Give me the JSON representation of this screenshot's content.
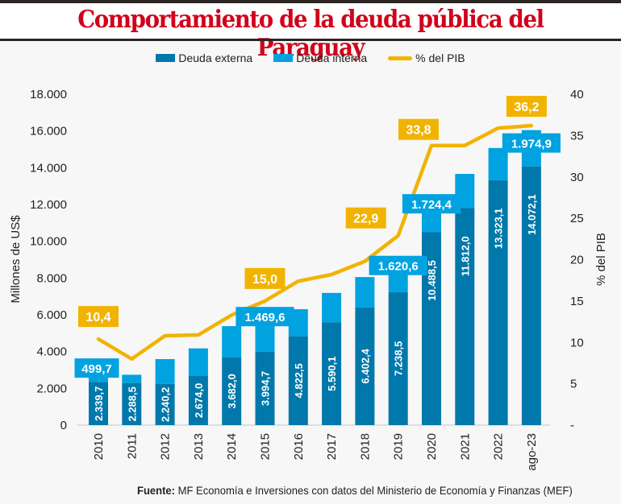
{
  "title": "Comportamiento de la deuda pública del Paraguay",
  "source_label": "Fuente:",
  "source_text": "MF Economía e Inversiones con datos del Ministerio de Economía y Finanzas (MEF)",
  "colors": {
    "title": "#d0021b",
    "externa": "#0078ab",
    "interna": "#00a2e0",
    "pib": "#f2b300"
  },
  "chart_data": {
    "type": "bar",
    "stacked": true,
    "title": "Comportamiento de la deuda pública del Paraguay",
    "categories": [
      "2010",
      "2011",
      "2012",
      "2013",
      "2014",
      "2015",
      "2016",
      "2017",
      "2018",
      "2019",
      "2020",
      "2021",
      "2022",
      "ago-23"
    ],
    "series": [
      {
        "name": "Deuda externa",
        "type": "bar",
        "axis": "left",
        "values": [
          2339.7,
          2288.5,
          2240.2,
          2674.0,
          3682.0,
          3994.7,
          4822.5,
          5590.1,
          6402.4,
          7238.5,
          10488.5,
          11812.0,
          13323.1,
          14072.1
        ],
        "labels": [
          "2.339,7",
          "2.288,5",
          "2.240,2",
          "2.674,0",
          "3.682,0",
          "3.994,7",
          "4.822,5",
          "5.590,1",
          "6.402,4",
          "7.238,5",
          "10.488,5",
          "11.812,0",
          "13.323,1",
          "14.072,1"
        ]
      },
      {
        "name": "Deuda interna",
        "type": "bar",
        "axis": "left",
        "values": [
          499.7,
          450,
          1350,
          1500,
          1700,
          1469.6,
          1480,
          1600,
          1650,
          1620.6,
          1724.4,
          1850,
          1750,
          1974.9
        ],
        "labels": [
          "499,7",
          null,
          null,
          null,
          null,
          "1.469,6",
          null,
          null,
          null,
          "1.620,6",
          "1.724,4",
          null,
          null,
          "1.974,9"
        ]
      },
      {
        "name": "% del PIB",
        "type": "line",
        "axis": "right",
        "values": [
          10.4,
          8.0,
          10.8,
          10.9,
          13.3,
          15.0,
          17.4,
          18.2,
          19.8,
          22.9,
          33.8,
          33.8,
          35.9,
          36.2
        ],
        "labels": [
          "10,4",
          null,
          null,
          null,
          null,
          "15,0",
          null,
          null,
          null,
          "22,9",
          "33,8",
          null,
          null,
          "36,2"
        ]
      }
    ],
    "ylabel": "Millones de US$",
    "ylim": [
      0,
      18000
    ],
    "yticks": [
      "0",
      "2.000",
      "4.000",
      "6.000",
      "8.000",
      "10.000",
      "12.000",
      "14.000",
      "16.000",
      "18.000"
    ],
    "y2label": "% del PIB",
    "y2lim": [
      0,
      40
    ],
    "y2ticks": [
      "-",
      "5",
      "10",
      "15",
      "20",
      "25",
      "30",
      "35",
      "40"
    ],
    "legend": [
      "Deuda externa",
      "Deuda interna",
      "% del PIB"
    ],
    "legend_position": "top-center",
    "grid": false
  }
}
